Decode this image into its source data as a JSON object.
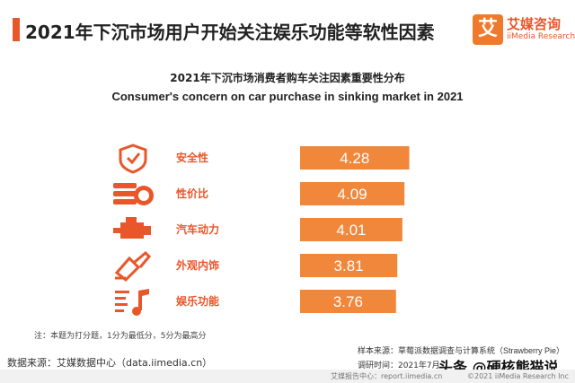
{
  "header": {
    "title": "2021年下沉市场用户开始关注娱乐功能等软性因素",
    "logo_char": "艾",
    "logo_name": "艾媒咨询",
    "logo_sub": "iiMedia Research"
  },
  "chart_data": {
    "type": "bar",
    "orientation": "horizontal",
    "title": "2021年下沉市场消费者购车关注因素重要性分布",
    "subtitle": "Consumer's concern on car purchase in sinking market in 2021",
    "categories": [
      "安全性",
      "性价比",
      "汽车动力",
      "外观内饰",
      "娱乐功能"
    ],
    "values": [
      4.28,
      4.09,
      4.01,
      3.81,
      3.76
    ],
    "data_labels": [
      "4.28",
      "4.09",
      "4.01",
      "3.81",
      "3.76"
    ],
    "icons": [
      "shield-check-icon",
      "money-coins-icon",
      "engine-icon",
      "paint-brush-icon",
      "music-note-icon"
    ],
    "scale_max": 5,
    "grid": false,
    "legend": "none",
    "bar_color": "#f0873a",
    "label_color": "#e8562a"
  },
  "notes": {
    "note": "注：本题为打分题，1分为最低分，5分为最高分",
    "sample_source": "样本来源：草莓派数据调查与计算系统（Strawberry Pie）",
    "period": "调研时间：2021年7月",
    "data_source": "数据来源：艾媒数据中心（data.iimedia.cn）"
  },
  "watermark": "头条 @硬核熊猫说",
  "footer": {
    "center": "艾媒报告中心：report.iimedia.cn",
    "right": "©2021  iiMedia Research Inc"
  }
}
